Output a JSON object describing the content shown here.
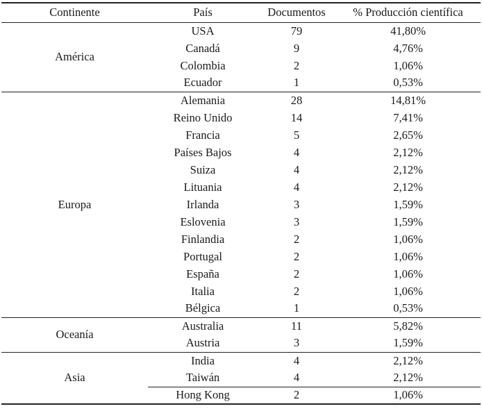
{
  "chart_data": {
    "type": "table",
    "columns": [
      "Continente",
      "País",
      "Documentos",
      "% Producción científica"
    ],
    "groups": [
      {
        "continent": "América",
        "rows": [
          [
            "USA",
            "79",
            "41,80%"
          ],
          [
            "Canadá",
            "9",
            "4,76%"
          ],
          [
            "Colombia",
            "2",
            "1,06%"
          ],
          [
            "Ecuador",
            "1",
            "0,53%"
          ]
        ]
      },
      {
        "continent": "Europa",
        "rows": [
          [
            "Alemania",
            "28",
            "14,81%"
          ],
          [
            "Reino Unido",
            "14",
            "7,41%"
          ],
          [
            "Francia",
            "5",
            "2,65%"
          ],
          [
            "Países Bajos",
            "4",
            "2,12%"
          ],
          [
            "Suiza",
            "4",
            "2,12%"
          ],
          [
            "Lituania",
            "4",
            "2,12%"
          ],
          [
            "Irlanda",
            "3",
            "1,59%"
          ],
          [
            "Eslovenia",
            "3",
            "1,59%"
          ],
          [
            "Finlandia",
            "2",
            "1,06%"
          ],
          [
            "Portugal",
            "2",
            "1,06%"
          ],
          [
            "España",
            "2",
            "1,06%"
          ],
          [
            "Italia",
            "2",
            "1,06%"
          ],
          [
            "Bélgica",
            "1",
            "0,53%"
          ]
        ]
      },
      {
        "continent": "Oceanía",
        "rows": [
          [
            "Australia",
            "11",
            "5,82%"
          ],
          [
            "Austria",
            "3",
            "1,59%"
          ]
        ]
      },
      {
        "continent": "Asia",
        "rows": [
          [
            "India",
            "4",
            "2,12%"
          ],
          [
            "Taiwán",
            "4",
            "2,12%"
          ],
          [
            "Hong Kong",
            "2",
            "1,06%"
          ]
        ],
        "rule_above_last_row": true
      }
    ],
    "layout": {
      "grid": "horizontal group rules only",
      "legend_position": "none",
      "column_alignment": [
        "center",
        "center",
        "center",
        "center"
      ]
    }
  },
  "colors": {
    "text": "#1a1a1a",
    "rule": "#222222",
    "background": "#ffffff"
  }
}
